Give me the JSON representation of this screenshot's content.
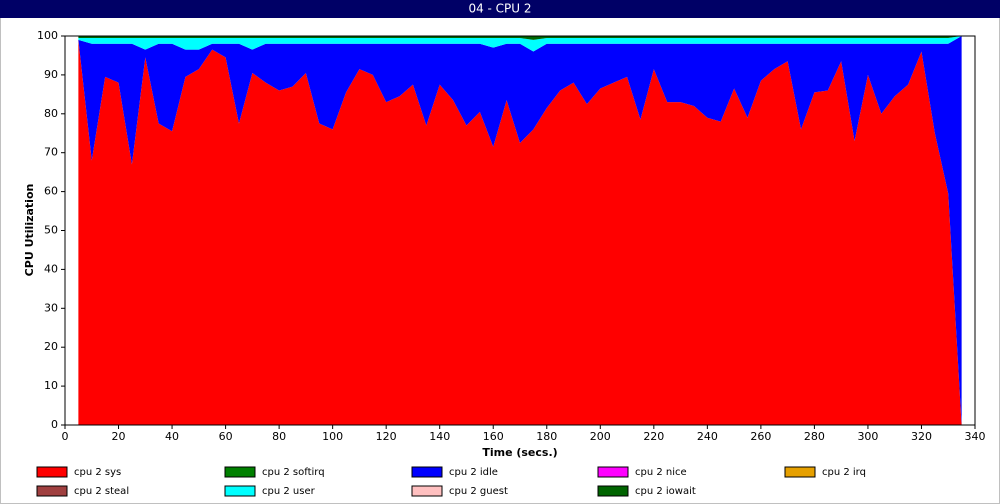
{
  "chart_data": {
    "type": "stacked_area",
    "title": "04 - CPU 2",
    "xlabel": "Time (secs.)",
    "ylabel": "CPU Utilization",
    "x": [
      5,
      10,
      15,
      20,
      25,
      30,
      35,
      40,
      45,
      50,
      55,
      60,
      65,
      70,
      75,
      80,
      85,
      90,
      95,
      100,
      105,
      110,
      115,
      120,
      125,
      130,
      135,
      140,
      145,
      150,
      155,
      160,
      165,
      170,
      175,
      180,
      185,
      190,
      195,
      200,
      205,
      210,
      215,
      220,
      225,
      230,
      235,
      240,
      245,
      250,
      255,
      260,
      265,
      270,
      275,
      280,
      285,
      290,
      295,
      300,
      305,
      310,
      315,
      320,
      325,
      330,
      335
    ],
    "xlim": [
      0,
      340
    ],
    "xticks": [
      0,
      20,
      40,
      60,
      80,
      100,
      120,
      140,
      160,
      180,
      200,
      220,
      240,
      260,
      280,
      300,
      320,
      340
    ],
    "ylim": [
      0,
      100
    ],
    "yticks": [
      0,
      10,
      20,
      30,
      40,
      50,
      60,
      70,
      80,
      90,
      100
    ],
    "grid": false,
    "series": [
      {
        "name": "cpu 2 sys",
        "color": "#ff0000",
        "values": [
          99,
          68,
          89.5,
          88,
          67,
          94.5,
          77.5,
          75.5,
          89.5,
          91.5,
          96.5,
          94.5,
          77.5,
          90.5,
          88,
          86,
          87,
          90.5,
          77.5,
          76,
          85.5,
          91.5,
          90,
          83,
          84.5,
          87.5,
          77,
          87.5,
          83.5,
          77,
          80.5,
          71.5,
          83.5,
          72.5,
          76,
          81.5,
          86,
          88,
          82.5,
          86.5,
          88,
          89.5,
          78.5,
          91.5,
          83,
          83,
          82,
          79,
          78,
          86.5,
          79,
          88.5,
          91.5,
          93.5,
          76,
          85.5,
          86,
          93.5,
          73,
          90,
          80,
          84.5,
          87.5,
          96,
          75,
          59.5,
          0
        ]
      },
      {
        "name": "cpu 2 softirq",
        "color": "#008000",
        "values": [
          0,
          0,
          0,
          0,
          0,
          0,
          0,
          0,
          0,
          0,
          0,
          0,
          0,
          0,
          0,
          0,
          0,
          0,
          0,
          0,
          0,
          0,
          0,
          0,
          0,
          0,
          0,
          0,
          0,
          0,
          0,
          0,
          0,
          0,
          0,
          0,
          0,
          0,
          0,
          0,
          0,
          0,
          0,
          0,
          0,
          0,
          0,
          0,
          0,
          0,
          0,
          0,
          0,
          0,
          0,
          0,
          0,
          0,
          0,
          0,
          0,
          0,
          0,
          0,
          0,
          0,
          0
        ]
      },
      {
        "name": "cpu 2 idle",
        "color": "#0000ff",
        "values": [
          0,
          30,
          8.5,
          10,
          31,
          2,
          20.5,
          22.5,
          7,
          5,
          1.5,
          3.5,
          20.5,
          6,
          10,
          12,
          11,
          7.5,
          20.5,
          22,
          12.5,
          6.5,
          8,
          15,
          13.5,
          10.5,
          21,
          10.5,
          14.5,
          21,
          17.5,
          25.5,
          14.5,
          25.5,
          20,
          16.5,
          12,
          10,
          15.5,
          11.5,
          10,
          8.5,
          19.5,
          6.5,
          15,
          15,
          16,
          19,
          20,
          11.5,
          19,
          9.5,
          6.5,
          4.5,
          22,
          12.5,
          12,
          4.5,
          25,
          8,
          18,
          13.5,
          10.5,
          2,
          23,
          38.5,
          100
        ]
      },
      {
        "name": "cpu 2 nice",
        "color": "#ff00ff",
        "values": [
          0,
          0,
          0,
          0,
          0,
          0,
          0,
          0,
          0,
          0,
          0,
          0,
          0,
          0,
          0,
          0,
          0,
          0,
          0,
          0,
          0,
          0,
          0,
          0,
          0,
          0,
          0,
          0,
          0,
          0,
          0,
          0,
          0,
          0,
          0,
          0,
          0,
          0,
          0,
          0,
          0,
          0,
          0,
          0,
          0,
          0,
          0,
          0,
          0,
          0,
          0,
          0,
          0,
          0,
          0,
          0,
          0,
          0,
          0,
          0,
          0,
          0,
          0,
          0,
          0,
          0,
          0
        ]
      },
      {
        "name": "cpu 2 irq",
        "color": "#e6a000",
        "values": [
          0,
          0,
          0,
          0,
          0,
          0,
          0,
          0,
          0,
          0,
          0,
          0,
          0,
          0,
          0,
          0,
          0,
          0,
          0,
          0,
          0,
          0,
          0,
          0,
          0,
          0,
          0,
          0,
          0,
          0,
          0,
          0,
          0,
          0,
          0,
          0,
          0,
          0,
          0,
          0,
          0,
          0,
          0,
          0,
          0,
          0,
          0,
          0,
          0,
          0,
          0,
          0,
          0,
          0,
          0,
          0,
          0,
          0,
          0,
          0,
          0,
          0,
          0,
          0,
          0,
          0,
          0
        ]
      },
      {
        "name": "cpu 2 steal",
        "color": "#a04040",
        "values": [
          0,
          0,
          0,
          0,
          0,
          0,
          0,
          0,
          0,
          0,
          0,
          0,
          0,
          0,
          0,
          0,
          0,
          0,
          0,
          0,
          0,
          0,
          0,
          0,
          0,
          0,
          0,
          0,
          0,
          0,
          0,
          0,
          0,
          0,
          0,
          0,
          0,
          0,
          0,
          0,
          0,
          0,
          0,
          0,
          0,
          0,
          0,
          0,
          0,
          0,
          0,
          0,
          0,
          0,
          0,
          0,
          0,
          0,
          0,
          0,
          0,
          0,
          0,
          0,
          0,
          0,
          0
        ]
      },
      {
        "name": "cpu 2 user",
        "color": "#00ffff",
        "values": [
          0.5,
          1.5,
          1.5,
          1.5,
          1.5,
          3,
          1.5,
          1.5,
          3,
          3,
          1.5,
          1.5,
          1.5,
          3,
          1.5,
          1.5,
          1.5,
          1.5,
          1.5,
          1.5,
          1.5,
          1.5,
          1.5,
          1.5,
          1.5,
          1.5,
          1.5,
          1.5,
          1.5,
          1.5,
          1.5,
          2.5,
          1.5,
          1.5,
          3,
          1.5,
          1.5,
          1.5,
          1.5,
          1.5,
          1.5,
          1.5,
          1.5,
          1.5,
          1.5,
          1.5,
          1.5,
          1.5,
          1.5,
          1.5,
          1.5,
          1.5,
          1.5,
          1.5,
          1.5,
          1.5,
          1.5,
          1.5,
          1.5,
          1.5,
          1.5,
          1.5,
          1.5,
          1.5,
          1.5,
          1.5,
          0
        ]
      },
      {
        "name": "cpu 2 guest",
        "color": "#ffc0c0",
        "values": [
          0,
          0,
          0,
          0,
          0,
          0,
          0,
          0,
          0,
          0,
          0,
          0,
          0,
          0,
          0,
          0,
          0,
          0,
          0,
          0,
          0,
          0,
          0,
          0,
          0,
          0,
          0,
          0,
          0,
          0,
          0,
          0,
          0,
          0,
          0,
          0,
          0,
          0,
          0,
          0,
          0,
          0,
          0,
          0,
          0,
          0,
          0,
          0,
          0,
          0,
          0,
          0,
          0,
          0,
          0,
          0,
          0,
          0,
          0,
          0,
          0,
          0,
          0,
          0,
          0,
          0,
          0
        ]
      },
      {
        "name": "cpu 2 iowait",
        "color": "#006400",
        "values": [
          0.5,
          0.5,
          0.5,
          0.5,
          0.5,
          0.5,
          0.5,
          0.5,
          0.5,
          0.5,
          0.5,
          0.5,
          0.5,
          0.5,
          0.5,
          0.5,
          0.5,
          0.5,
          0.5,
          0.5,
          0.5,
          0.5,
          0.5,
          0.5,
          0.5,
          0.5,
          0.5,
          0.5,
          0.5,
          0.5,
          0.5,
          0.5,
          0.5,
          0.5,
          1,
          0.5,
          0.5,
          0.5,
          0.5,
          0.5,
          0.5,
          0.5,
          0.5,
          0.5,
          0.5,
          0.5,
          0.5,
          0.5,
          0.5,
          0.5,
          0.5,
          0.5,
          0.5,
          0.5,
          0.5,
          0.5,
          0.5,
          0.5,
          0.5,
          0.5,
          0.5,
          0.5,
          0.5,
          0.5,
          0.5,
          0.5,
          0
        ]
      }
    ]
  }
}
